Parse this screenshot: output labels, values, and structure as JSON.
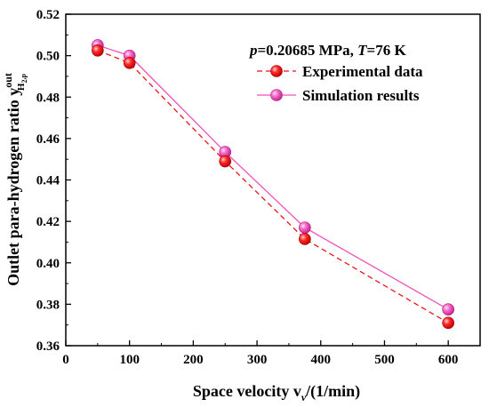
{
  "chart_data": {
    "type": "line",
    "xlabel_main": "Space velocity v",
    "xlabel_sub": "v",
    "xlabel_tail": "/(1/min)",
    "ylabel_main": "Outlet para-hydrogen ratio y",
    "ylabel_sup": "out",
    "ylabel_sub": "H",
    "ylabel_sub2": "2",
    "ylabel_sub3": ",p",
    "xlim": [
      0,
      650
    ],
    "ylim": [
      0.36,
      0.52
    ],
    "xticks": [
      0,
      100,
      200,
      300,
      400,
      500,
      600
    ],
    "yticks": [
      0.36,
      0.38,
      0.4,
      0.42,
      0.44,
      0.46,
      0.48,
      0.5,
      0.52
    ],
    "ytick_labels": [
      "0.36",
      "0.38",
      "0.40",
      "0.42",
      "0.44",
      "0.46",
      "0.48",
      "0.50",
      "0.52"
    ],
    "annotation": {
      "p_var": "p",
      "p_value": "=0.20685 MPa, ",
      "t_var": "T",
      "t_value": "=76 K"
    },
    "legend_position": "top-right",
    "series": [
      {
        "name": "Experimental data",
        "color": "#e8151b",
        "line_style": "dashed",
        "x": [
          50,
          100,
          250,
          375,
          600
        ],
        "y": [
          0.5025,
          0.4965,
          0.449,
          0.4115,
          0.371
        ]
      },
      {
        "name": "Simulation results",
        "color": "#f052b8",
        "line_style": "solid",
        "x": [
          50,
          100,
          250,
          375,
          600
        ],
        "y": [
          0.505,
          0.5,
          0.4535,
          0.417,
          0.3775
        ]
      }
    ]
  }
}
